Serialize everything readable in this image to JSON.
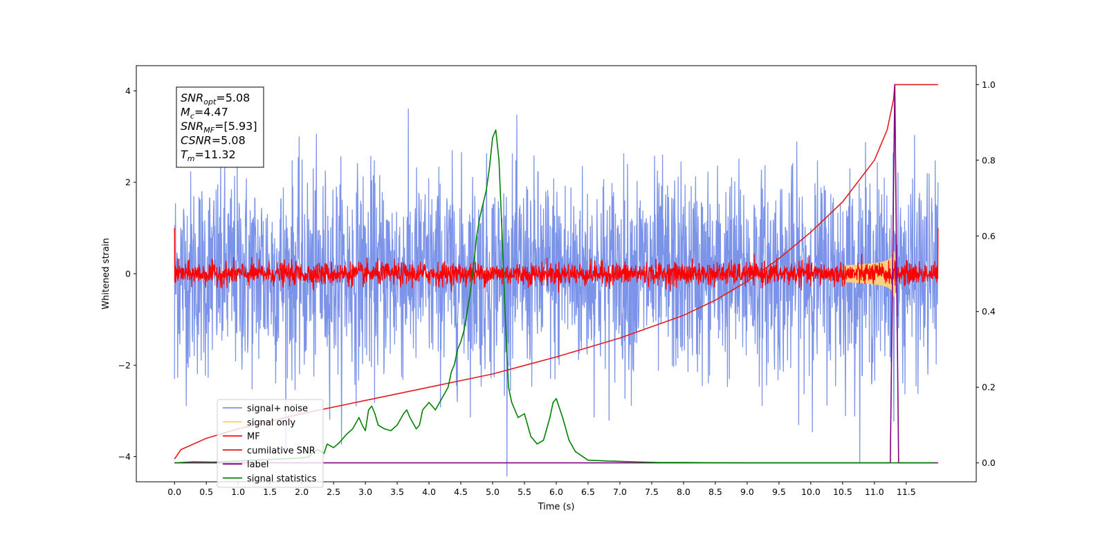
{
  "chart_data": {
    "type": "line",
    "title": "",
    "xlabel": "Time (s)",
    "ylabel": "Whitened strain",
    "xlim": [
      -0.6,
      12.6
    ],
    "ylim": [
      -4.55,
      4.55
    ],
    "y2lim": [
      -0.05,
      1.05
    ],
    "x_ticks": [
      "0.0",
      "0.5",
      "1.0",
      "1.5",
      "2.0",
      "2.5",
      "3.0",
      "3.5",
      "4.0",
      "4.5",
      "5.0",
      "5.5",
      "6.0",
      "6.5",
      "7.0",
      "7.5",
      "8.0",
      "8.5",
      "9.0",
      "9.5",
      "10.0",
      "10.5",
      "11.0",
      "11.5"
    ],
    "y_ticks": [
      "4",
      "2",
      "0",
      "−2",
      "−4"
    ],
    "y2_ticks": [
      "1.0",
      "0.8",
      "0.6",
      "0.4",
      "0.2",
      "0.0"
    ],
    "grid": false,
    "legend_position": "lower-left",
    "annotation": {
      "lines": [
        {
          "main": "SNR",
          "sub": "opt",
          "value": "=5.08"
        },
        {
          "main": "M",
          "sub": "c",
          "value": "=4.47"
        },
        {
          "main": "SNR",
          "sub": "MF",
          "value": "=[5.93]"
        },
        {
          "main": "CSNR",
          "sub": "",
          "value": "=5.08"
        },
        {
          "main": "T",
          "sub": "m",
          "value": "=11.32"
        }
      ]
    },
    "series": [
      {
        "name": "signal+ noise",
        "color": "#7b93e8",
        "axis": "left",
        "kind": "noise",
        "std": 1.1,
        "x_range": [
          0,
          12
        ]
      },
      {
        "name": "signal only",
        "color": "#ffcf80",
        "axis": "left",
        "kind": "chirp",
        "t_merge": 11.32
      },
      {
        "name": "MF",
        "color": "#ff0000",
        "axis": "left",
        "kind": "noise",
        "std": 0.12,
        "x_range": [
          0,
          12
        ]
      },
      {
        "name": "cumilative SNR",
        "color": "#e41a1c",
        "axis": "right",
        "x": [
          0.0,
          0.1,
          0.5,
          1.0,
          2.0,
          3.0,
          4.0,
          5.0,
          6.0,
          7.0,
          8.0,
          8.5,
          9.0,
          9.5,
          10.0,
          10.5,
          11.0,
          11.2,
          11.3,
          11.32,
          11.5,
          12.0
        ],
        "y": [
          0.01,
          0.035,
          0.065,
          0.09,
          0.13,
          0.165,
          0.2,
          0.235,
          0.28,
          0.33,
          0.39,
          0.43,
          0.48,
          0.54,
          0.61,
          0.69,
          0.8,
          0.88,
          0.96,
          1.0,
          1.0,
          1.0
        ]
      },
      {
        "name": "label",
        "color": "#800080",
        "axis": "right",
        "x": [
          0.0,
          11.25,
          11.32,
          11.32,
          11.38,
          11.5,
          12.0
        ],
        "y": [
          0.0,
          0.0,
          1.0,
          1.0,
          0.0,
          0.0,
          0.0
        ]
      },
      {
        "name": "signal statistics",
        "color": "#008000",
        "axis": "right",
        "x": [
          0.0,
          0.3,
          0.6,
          1.0,
          1.3,
          1.6,
          1.9,
          2.1,
          2.2,
          2.25,
          2.3,
          2.35,
          2.4,
          2.5,
          2.6,
          2.7,
          2.8,
          2.9,
          2.95,
          3.0,
          3.05,
          3.1,
          3.15,
          3.2,
          3.3,
          3.4,
          3.5,
          3.6,
          3.65,
          3.7,
          3.8,
          3.85,
          3.9,
          4.0,
          4.05,
          4.1,
          4.2,
          4.3,
          4.35,
          4.4,
          4.45,
          4.5,
          4.55,
          4.6,
          4.65,
          4.7,
          4.75,
          4.8,
          4.9,
          4.95,
          5.0,
          5.05,
          5.1,
          5.15,
          5.2,
          5.25,
          5.3,
          5.35,
          5.4,
          5.5,
          5.6,
          5.7,
          5.8,
          5.9,
          5.95,
          6.0,
          6.1,
          6.2,
          6.3,
          6.5,
          6.7,
          6.8,
          7.0,
          7.2,
          7.4,
          7.6,
          8.0,
          9.0,
          10.0,
          11.0,
          11.5,
          11.95
        ],
        "y": [
          0.0,
          0.003,
          0.002,
          0.005,
          0.008,
          0.01,
          0.012,
          0.015,
          0.03,
          0.035,
          0.03,
          0.025,
          0.05,
          0.04,
          0.055,
          0.075,
          0.09,
          0.12,
          0.1,
          0.085,
          0.14,
          0.15,
          0.13,
          0.1,
          0.09,
          0.085,
          0.1,
          0.13,
          0.14,
          0.12,
          0.09,
          0.1,
          0.14,
          0.16,
          0.15,
          0.14,
          0.17,
          0.2,
          0.24,
          0.26,
          0.3,
          0.32,
          0.35,
          0.4,
          0.45,
          0.52,
          0.6,
          0.65,
          0.72,
          0.78,
          0.86,
          0.88,
          0.8,
          0.6,
          0.38,
          0.2,
          0.16,
          0.14,
          0.12,
          0.13,
          0.07,
          0.05,
          0.06,
          0.12,
          0.16,
          0.17,
          0.12,
          0.06,
          0.03,
          0.007,
          0.006,
          0.005,
          0.004,
          0.003,
          0.002,
          0.001,
          0.001,
          0.0,
          0.0,
          0.0,
          0.0,
          0.0
        ]
      }
    ]
  }
}
